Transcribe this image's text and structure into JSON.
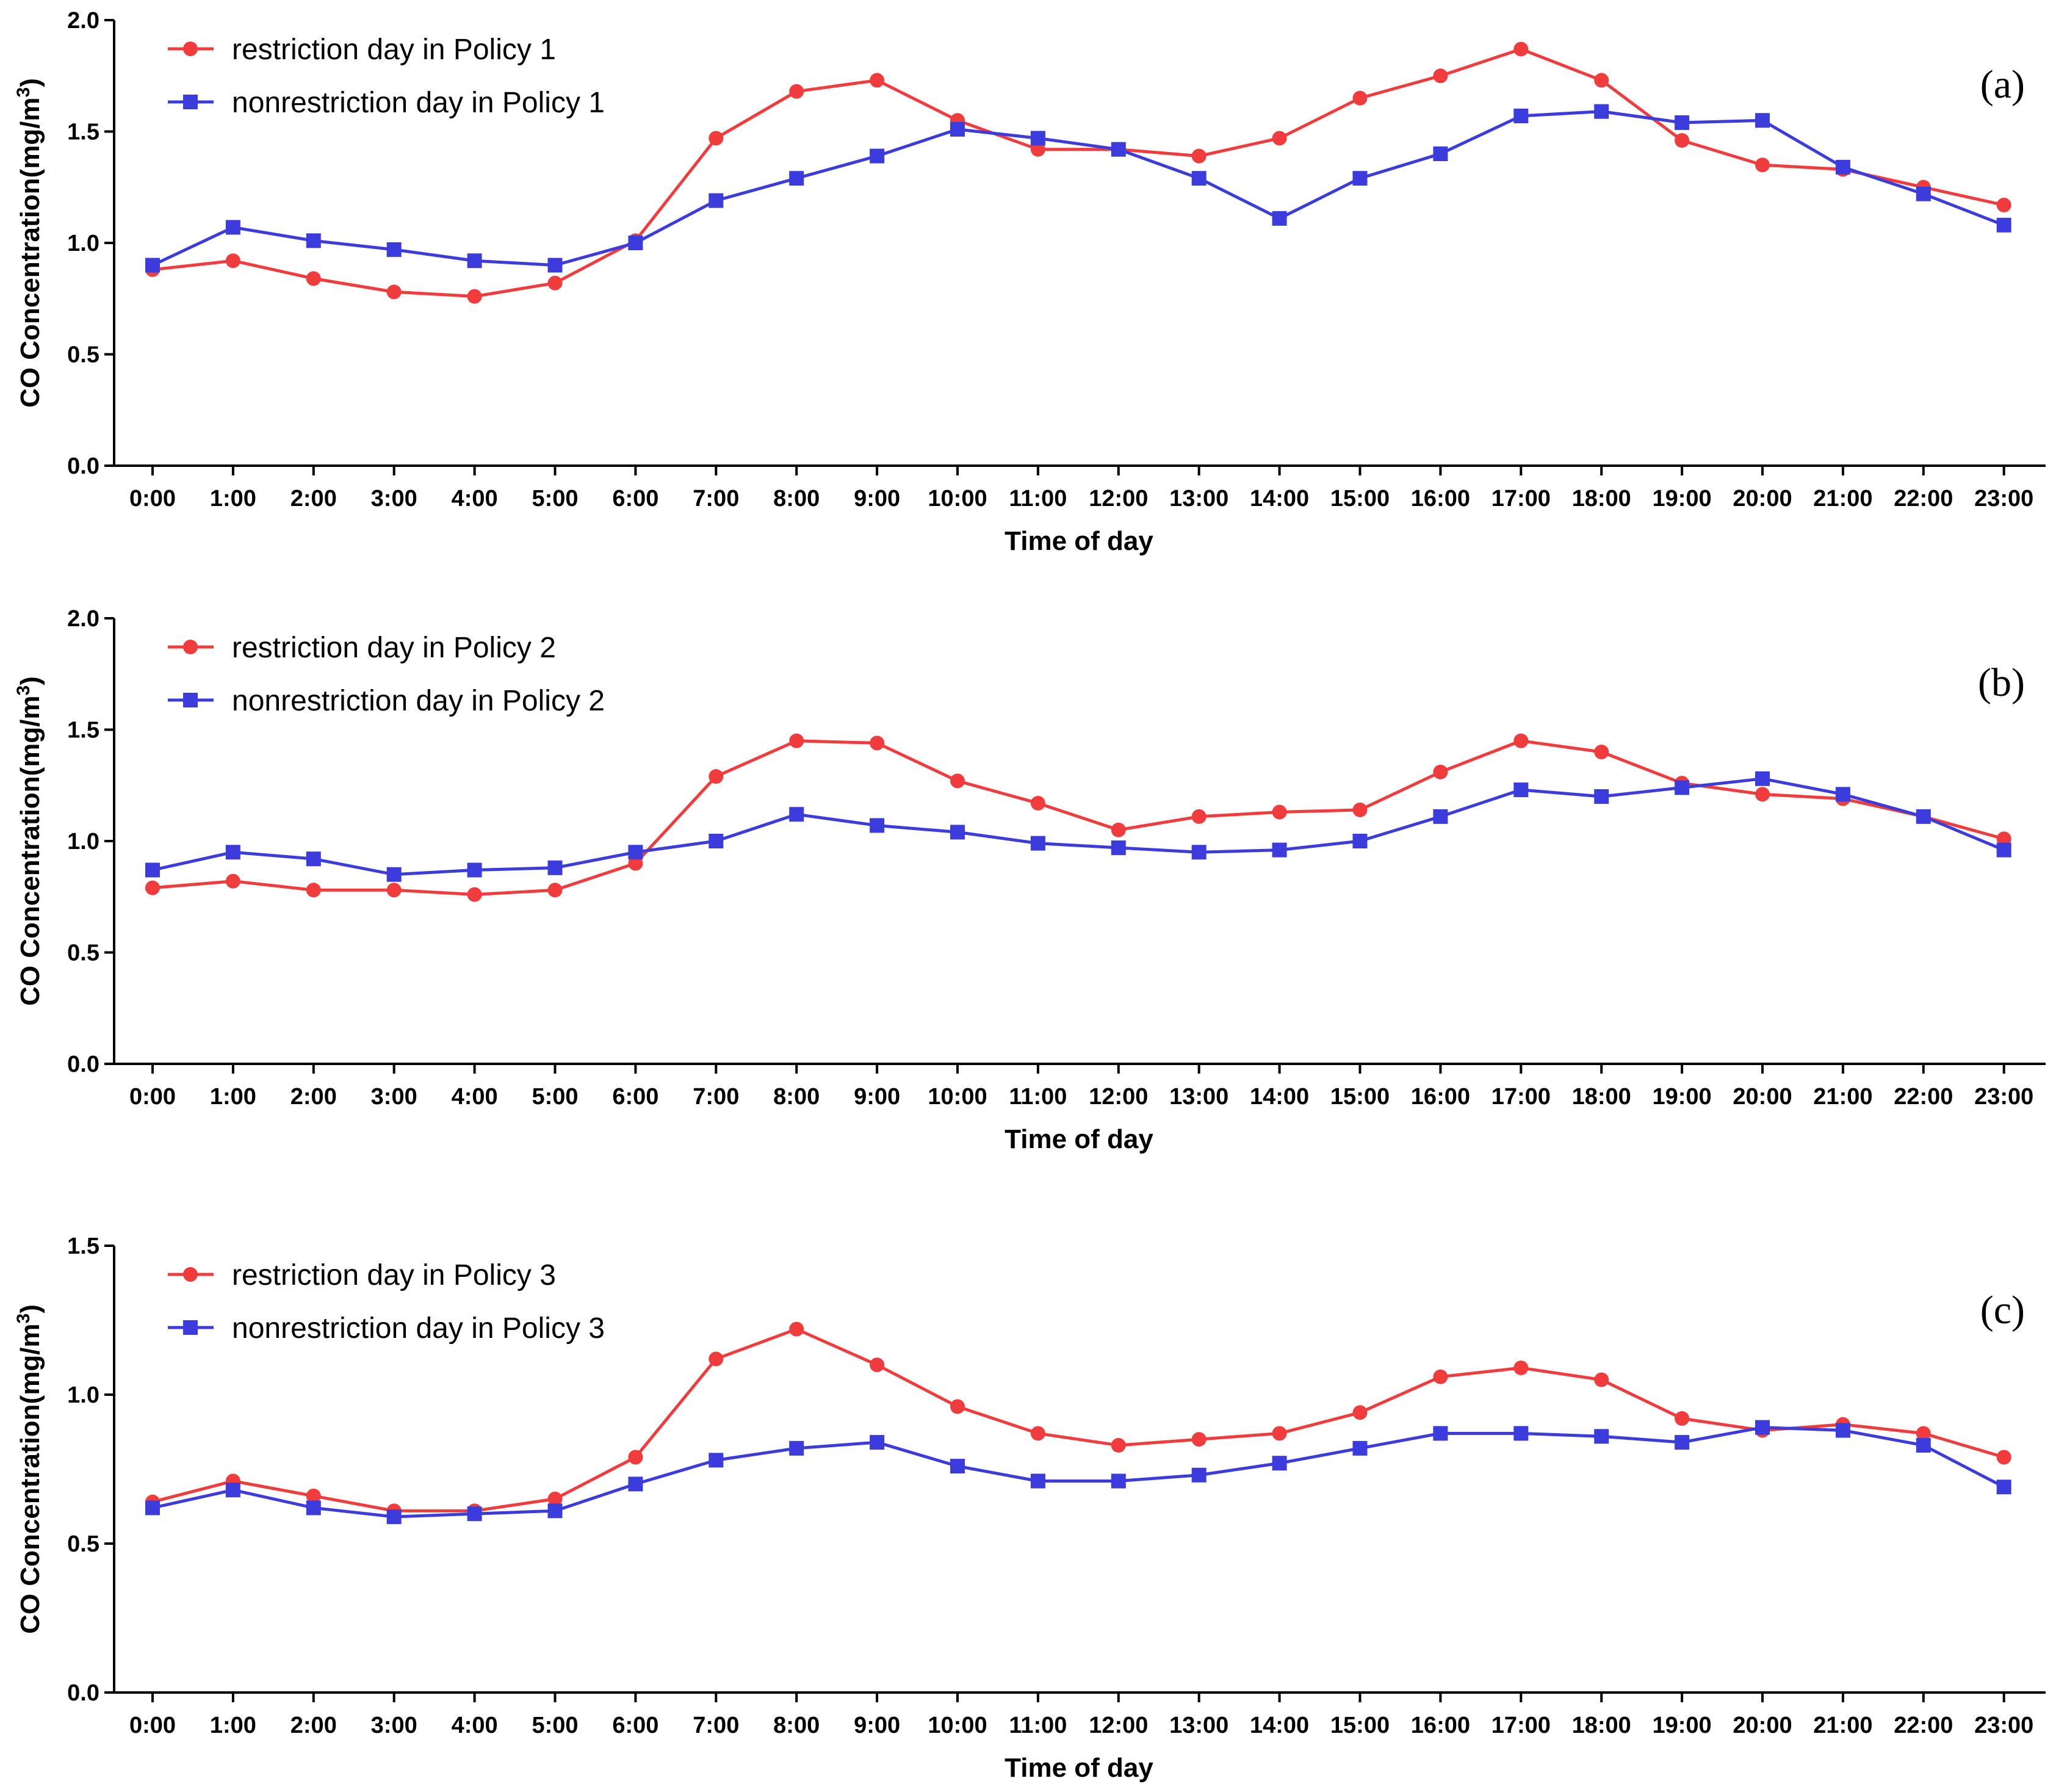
{
  "chart_data": [
    {
      "type": "line",
      "panel_label": "(a)",
      "ylabel_main": "CO Concentration(mg/m",
      "ylabel_sup": "3",
      "ylabel_close": ")",
      "xlabel": "Time of day",
      "categories": [
        "0:00",
        "1:00",
        "2:00",
        "3:00",
        "4:00",
        "5:00",
        "6:00",
        "7:00",
        "8:00",
        "9:00",
        "10:00",
        "11:00",
        "12:00",
        "13:00",
        "14:00",
        "15:00",
        "16:00",
        "17:00",
        "18:00",
        "19:00",
        "20:00",
        "21:00",
        "22:00",
        "23:00"
      ],
      "ylim": [
        0,
        2.0
      ],
      "yticks": [
        0.0,
        0.5,
        1.0,
        1.5,
        2.0
      ],
      "ytick_labels": [
        "0.0",
        "0.5",
        "1.0",
        "1.5",
        "2.0"
      ],
      "legend_position": "top-left",
      "series": [
        {
          "name": "restriction day in Policy 1",
          "color": "#f03c3c",
          "marker": "circle",
          "values": [
            0.88,
            0.92,
            0.84,
            0.78,
            0.76,
            0.82,
            1.01,
            1.47,
            1.68,
            1.73,
            1.55,
            1.42,
            1.42,
            1.39,
            1.47,
            1.65,
            1.75,
            1.87,
            1.73,
            1.46,
            1.35,
            1.33,
            1.25,
            1.17
          ]
        },
        {
          "name": "nonrestriction day in Policy 1",
          "color": "#3c3cdc",
          "marker": "square",
          "values": [
            0.9,
            1.07,
            1.01,
            0.97,
            0.92,
            0.9,
            1.0,
            1.19,
            1.29,
            1.39,
            1.51,
            1.47,
            1.42,
            1.29,
            1.11,
            1.29,
            1.4,
            1.57,
            1.59,
            1.54,
            1.55,
            1.34,
            1.22,
            1.08
          ]
        }
      ]
    },
    {
      "type": "line",
      "panel_label": "(b)",
      "ylabel_main": "CO Concentration(mg/m",
      "ylabel_sup": "3",
      "ylabel_close": ")",
      "xlabel": "Time of day",
      "categories": [
        "0:00",
        "1:00",
        "2:00",
        "3:00",
        "4:00",
        "5:00",
        "6:00",
        "7:00",
        "8:00",
        "9:00",
        "10:00",
        "11:00",
        "12:00",
        "13:00",
        "14:00",
        "15:00",
        "16:00",
        "17:00",
        "18:00",
        "19:00",
        "20:00",
        "21:00",
        "22:00",
        "23:00"
      ],
      "ylim": [
        0,
        2.0
      ],
      "yticks": [
        0.0,
        0.5,
        1.0,
        1.5,
        2.0
      ],
      "ytick_labels": [
        "0.0",
        "0.5",
        "1.0",
        "1.5",
        "2.0"
      ],
      "legend_position": "top-left",
      "series": [
        {
          "name": "restriction day in Policy 2",
          "color": "#f03c3c",
          "marker": "circle",
          "values": [
            0.79,
            0.82,
            0.78,
            0.78,
            0.76,
            0.78,
            0.9,
            1.29,
            1.45,
            1.44,
            1.27,
            1.17,
            1.05,
            1.11,
            1.13,
            1.14,
            1.31,
            1.45,
            1.4,
            1.26,
            1.21,
            1.19,
            1.11,
            1.01
          ]
        },
        {
          "name": "nonrestriction day in Policy 2",
          "color": "#3c3cdc",
          "marker": "square",
          "values": [
            0.87,
            0.95,
            0.92,
            0.85,
            0.87,
            0.88,
            0.95,
            1.0,
            1.12,
            1.07,
            1.04,
            0.99,
            0.97,
            0.95,
            0.96,
            1.0,
            1.11,
            1.23,
            1.2,
            1.24,
            1.28,
            1.21,
            1.11,
            0.96
          ]
        }
      ]
    },
    {
      "type": "line",
      "panel_label": "(c)",
      "ylabel_main": "CO Concentration(mg/m",
      "ylabel_sup": "3",
      "ylabel_close": ")",
      "xlabel": "Time of day",
      "categories": [
        "0:00",
        "1:00",
        "2:00",
        "3:00",
        "4:00",
        "5:00",
        "6:00",
        "7:00",
        "8:00",
        "9:00",
        "10:00",
        "11:00",
        "12:00",
        "13:00",
        "14:00",
        "15:00",
        "16:00",
        "17:00",
        "18:00",
        "19:00",
        "20:00",
        "21:00",
        "22:00",
        "23:00"
      ],
      "ylim": [
        0,
        1.5
      ],
      "yticks": [
        0.0,
        0.5,
        1.0,
        1.5
      ],
      "ytick_labels": [
        "0.0",
        "0.5",
        "1.0",
        "1.5"
      ],
      "legend_position": "top-left",
      "series": [
        {
          "name": "restriction day in Policy 3",
          "color": "#f03c3c",
          "marker": "circle",
          "values": [
            0.64,
            0.71,
            0.66,
            0.61,
            0.61,
            0.65,
            0.79,
            1.12,
            1.22,
            1.1,
            0.96,
            0.87,
            0.83,
            0.85,
            0.87,
            0.94,
            1.06,
            1.09,
            1.05,
            0.92,
            0.88,
            0.9,
            0.87,
            0.79
          ]
        },
        {
          "name": "nonrestriction day in Policy 3",
          "color": "#3c3cdc",
          "marker": "square",
          "values": [
            0.62,
            0.68,
            0.62,
            0.59,
            0.6,
            0.61,
            0.7,
            0.78,
            0.82,
            0.84,
            0.76,
            0.71,
            0.71,
            0.73,
            0.77,
            0.82,
            0.87,
            0.87,
            0.86,
            0.84,
            0.89,
            0.88,
            0.83,
            0.69
          ]
        }
      ]
    }
  ]
}
